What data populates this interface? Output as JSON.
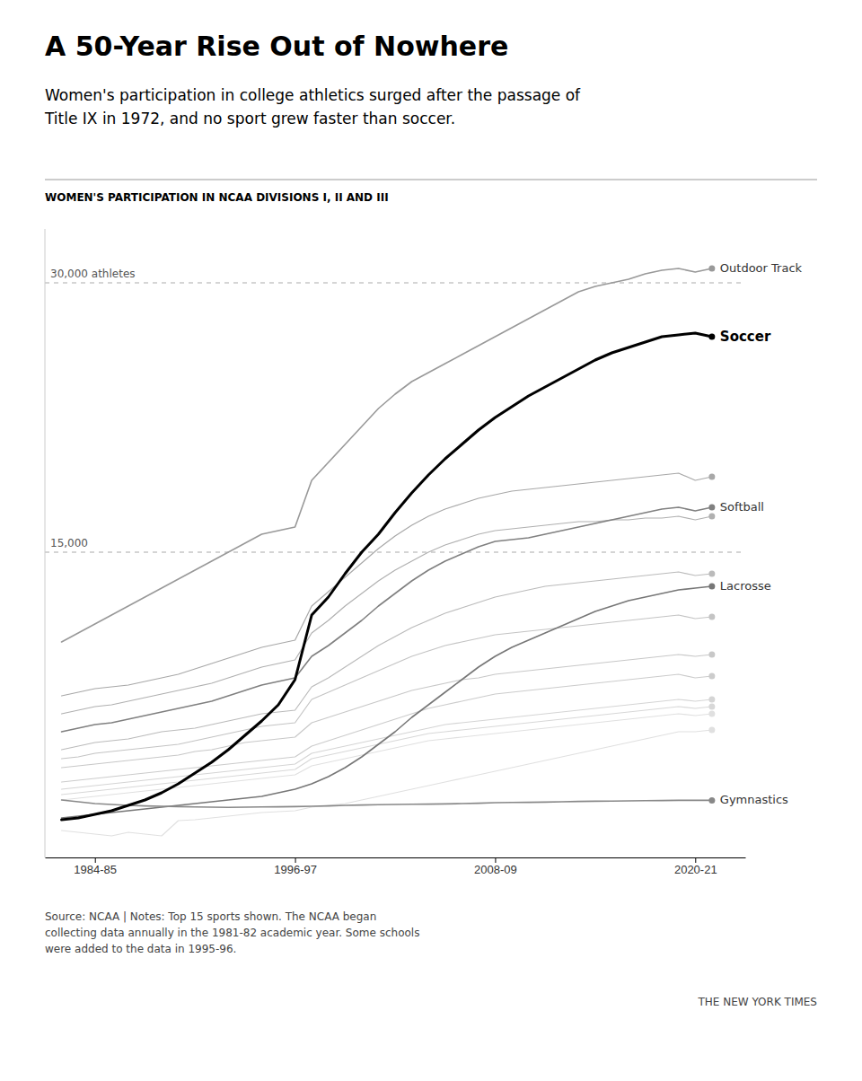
{
  "chart_data": {
    "type": "line",
    "title": "A 50-Year Rise Out of Nowhere",
    "subtitle": "Women's participation in college athletics surged after the passage of\nTitle IX in 1972, and no sport grew faster than soccer.",
    "section_label": "WOMEN'S PARTICIPATION IN NCAA DIVISIONS I, II AND III",
    "source": "Source: NCAA | Notes: Top 15 sports shown. The NCAA began\ncollecting data annually in the 1981-82 academic year. Some schools\nwere added to the data in 1995-96.",
    "credit": "THE NEW YORK TIMES",
    "x": [
      1982,
      1983,
      1984,
      1985,
      1986,
      1987,
      1988,
      1989,
      1990,
      1991,
      1992,
      1993,
      1994,
      1995,
      1996,
      1997,
      1998,
      1999,
      2000,
      2001,
      2002,
      2003,
      2004,
      2005,
      2006,
      2007,
      2008,
      2009,
      2010,
      2011,
      2012,
      2013,
      2014,
      2015,
      2016,
      2017,
      2018,
      2019,
      2020,
      2021
    ],
    "xlim": [
      1981,
      2023
    ],
    "xticks": [
      {
        "value": 1984,
        "label": "1984-85"
      },
      {
        "value": 1996,
        "label": "1996-97"
      },
      {
        "value": 2008,
        "label": "2008-09"
      },
      {
        "value": 2020,
        "label": "2020-21"
      }
    ],
    "ylim": [
      -2000,
      33000
    ],
    "yticks": [
      {
        "value": 30000,
        "label": "30,000 athletes"
      },
      {
        "value": 15000,
        "label": "15,000"
      }
    ],
    "grid": true,
    "series": [
      {
        "color": "#e0e0e0",
        "values": [
          -500,
          -600,
          -700,
          -800,
          -600,
          -700,
          -800,
          50,
          100,
          200,
          300,
          400,
          500,
          550,
          600,
          800,
          900,
          1000,
          1200,
          1400,
          1600,
          1800,
          2000,
          2200,
          2400,
          2600,
          2800,
          3000,
          3200,
          3400,
          3600,
          3800,
          4000,
          4200,
          4400,
          4600,
          4800,
          5000,
          5000,
          5100
        ]
      },
      {
        "color": "#e0e0e0",
        "values": [
          1200,
          1300,
          1400,
          1500,
          1600,
          1700,
          1800,
          1900,
          2000,
          2100,
          2200,
          2300,
          2400,
          2500,
          2600,
          3100,
          3300,
          3500,
          3700,
          3900,
          4100,
          4300,
          4500,
          4600,
          4700,
          4800,
          4900,
          5000,
          5100,
          5200,
          5300,
          5400,
          5500,
          5600,
          5700,
          5800,
          5900,
          6000,
          5900,
          6000
        ]
      },
      {
        "color": "#d8d8d8",
        "values": [
          1500,
          1600,
          1700,
          1800,
          1900,
          2000,
          2100,
          2200,
          2300,
          2400,
          2500,
          2600,
          2700,
          2800,
          2900,
          3500,
          3700,
          3900,
          4100,
          4300,
          4500,
          4700,
          4900,
          5000,
          5100,
          5200,
          5300,
          5400,
          5500,
          5600,
          5700,
          5800,
          5900,
          6000,
          6100,
          6200,
          6300,
          6400,
          6300,
          6400
        ]
      },
      {
        "color": "#d5d5d5",
        "values": [
          1800,
          1900,
          2000,
          2100,
          2200,
          2300,
          2400,
          2500,
          2600,
          2700,
          2800,
          2900,
          3000,
          3100,
          3200,
          3800,
          4000,
          4200,
          4400,
          4600,
          4800,
          5000,
          5200,
          5400,
          5500,
          5600,
          5700,
          5800,
          5900,
          6000,
          6100,
          6200,
          6300,
          6400,
          6500,
          6600,
          6700,
          6800,
          6700,
          6800
        ]
      },
      {
        "color": "#cccccc",
        "values": [
          2200,
          2300,
          2400,
          2500,
          2600,
          2700,
          2800,
          2900,
          3000,
          3100,
          3200,
          3300,
          3400,
          3500,
          3600,
          4200,
          4500,
          4800,
          5100,
          5400,
          5700,
          6000,
          6300,
          6500,
          6700,
          6900,
          7100,
          7200,
          7300,
          7400,
          7500,
          7600,
          7700,
          7800,
          7900,
          8000,
          8100,
          8200,
          8000,
          8100
        ]
      },
      {
        "color": "#c8c8c8",
        "values": [
          3000,
          3100,
          3200,
          3300,
          3400,
          3500,
          3600,
          3700,
          3900,
          4000,
          4200,
          4400,
          4500,
          4600,
          4700,
          5500,
          5800,
          6100,
          6400,
          6700,
          7000,
          7300,
          7500,
          7700,
          7900,
          8000,
          8200,
          8300,
          8400,
          8500,
          8600,
          8700,
          8800,
          8900,
          9000,
          9100,
          9200,
          9300,
          9200,
          9300
        ]
      },
      {
        "color": "#c4c4c4",
        "values": [
          3500,
          3600,
          3800,
          3900,
          4000,
          4100,
          4200,
          4300,
          4500,
          4700,
          4900,
          5100,
          5300,
          5400,
          5500,
          6800,
          7200,
          7600,
          8000,
          8400,
          8800,
          9200,
          9500,
          9800,
          10000,
          10200,
          10400,
          10500,
          10600,
          10700,
          10800,
          10900,
          11000,
          11100,
          11200,
          11300,
          11400,
          11500,
          11300,
          11400
        ]
      },
      {
        "color": "#bbbbbb",
        "values": [
          4000,
          4200,
          4400,
          4500,
          4600,
          4800,
          5000,
          5100,
          5200,
          5400,
          5600,
          5800,
          6000,
          6100,
          6200,
          7500,
          8000,
          8600,
          9200,
          9800,
          10300,
          10800,
          11200,
          11600,
          11900,
          12200,
          12500,
          12700,
          12900,
          13100,
          13200,
          13300,
          13400,
          13500,
          13600,
          13700,
          13800,
          13900,
          13700,
          13800
        ]
      },
      {
        "color": "#b0b0b0",
        "values": [
          6000,
          6200,
          6400,
          6500,
          6700,
          6900,
          7100,
          7300,
          7500,
          7700,
          8000,
          8300,
          8600,
          8800,
          9000,
          10500,
          11200,
          12000,
          12700,
          13400,
          14000,
          14500,
          15000,
          15400,
          15700,
          16000,
          16200,
          16300,
          16400,
          16500,
          16600,
          16700,
          16700,
          16800,
          16800,
          16900,
          16900,
          17000,
          16800,
          17000
        ]
      },
      {
        "color": "#a8a8a8",
        "values": [
          7000,
          7200,
          7400,
          7500,
          7600,
          7800,
          8000,
          8200,
          8500,
          8800,
          9100,
          9400,
          9700,
          9900,
          10100,
          12000,
          12800,
          13600,
          14400,
          15200,
          15900,
          16500,
          17000,
          17400,
          17700,
          18000,
          18200,
          18400,
          18500,
          18600,
          18700,
          18800,
          18900,
          19000,
          19100,
          19200,
          19300,
          19400,
          19000,
          19200
        ]
      },
      {
        "name": "Outdoor Track",
        "color": "#999999",
        "values": [
          10000,
          10500,
          11000,
          11500,
          12000,
          12500,
          13000,
          13500,
          14000,
          14500,
          15000,
          15500,
          16000,
          16200,
          16400,
          19000,
          20000,
          21000,
          22000,
          23000,
          23800,
          24500,
          25000,
          25500,
          26000,
          26500,
          27000,
          27500,
          28000,
          28500,
          29000,
          29500,
          29800,
          30000,
          30200,
          30500,
          30700,
          30800,
          30600,
          30800
        ]
      },
      {
        "name": "Softball",
        "color": "#808080",
        "values": [
          5000,
          5200,
          5400,
          5500,
          5700,
          5900,
          6100,
          6300,
          6500,
          6700,
          7000,
          7300,
          7600,
          7800,
          8000,
          9200,
          9800,
          10500,
          11200,
          12000,
          12700,
          13400,
          14000,
          14500,
          14900,
          15300,
          15600,
          15700,
          15800,
          16000,
          16200,
          16400,
          16600,
          16800,
          17000,
          17200,
          17400,
          17500,
          17300,
          17500
        ]
      },
      {
        "name": "Lacrosse",
        "color": "#777777",
        "values": [
          200,
          300,
          400,
          500,
          600,
          700,
          800,
          900,
          1000,
          1100,
          1200,
          1300,
          1400,
          1600,
          1800,
          2100,
          2500,
          3000,
          3600,
          4300,
          5000,
          5800,
          6500,
          7200,
          7900,
          8600,
          9200,
          9700,
          10100,
          10500,
          10900,
          11300,
          11700,
          12000,
          12300,
          12500,
          12700,
          12900,
          13000,
          13100
        ]
      },
      {
        "name": "Gymnastics",
        "color": "#888888",
        "values": [
          1200,
          1100,
          1000,
          950,
          900,
          870,
          850,
          830,
          810,
          800,
          790,
          800,
          810,
          820,
          830,
          850,
          870,
          900,
          920,
          940,
          950,
          960,
          970,
          980,
          1000,
          1020,
          1050,
          1060,
          1070,
          1080,
          1100,
          1120,
          1130,
          1140,
          1150,
          1160,
          1170,
          1180,
          1180,
          1180
        ]
      },
      {
        "name": "Soccer",
        "color": "#000000",
        "values": [
          100,
          200,
          400,
          600,
          900,
          1200,
          1600,
          2100,
          2700,
          3300,
          4000,
          4800,
          5600,
          6500,
          7900,
          11500,
          12500,
          13800,
          15000,
          16000,
          17200,
          18300,
          19300,
          20200,
          21000,
          21800,
          22500,
          23100,
          23700,
          24200,
          24700,
          25200,
          25700,
          26100,
          26400,
          26700,
          27000,
          27100,
          27200,
          27000
        ]
      }
    ]
  }
}
